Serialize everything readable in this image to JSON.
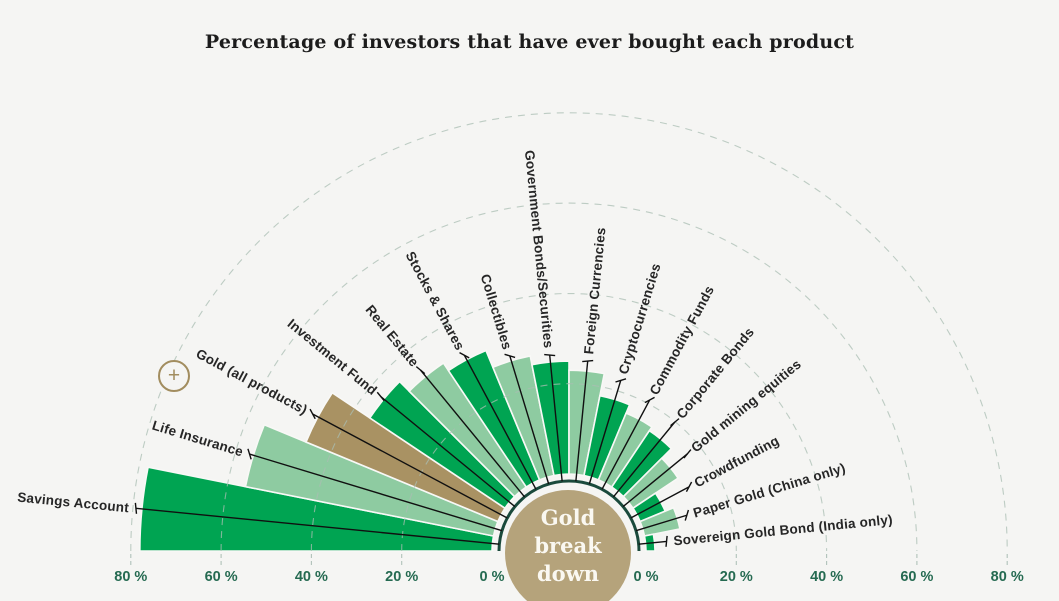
{
  "title": "Percentage of investors that have ever bought each product",
  "controls": {
    "expand_label": "+"
  },
  "center": {
    "label_lines": [
      "Gold",
      "break",
      "down"
    ]
  },
  "chart_data": {
    "type": "radial_bar",
    "title": "Percentage of investors that have ever bought each product",
    "unit": "%",
    "axis_range": [
      0,
      80
    ],
    "axis_ticks": [
      0,
      20,
      40,
      60,
      80
    ],
    "axis_tick_suffix": " %",
    "grid": true,
    "legend": "none",
    "center_label": "Gold break down",
    "colors": {
      "dark_green": "#00a452",
      "light_green": "#8ecba1",
      "gold": "#a99263",
      "center_circle": "#b5a37b",
      "ring": "#1a4a3c",
      "grid_line": "#a9bdb3",
      "axis_text": "#256a51",
      "label_text": "#262626",
      "leader_line": "#101010",
      "background": "#f5f5f3",
      "plus_icon": "#a28d5f"
    },
    "bars": [
      {
        "label": "Savings Account",
        "value": 78,
        "color": "dark_green"
      },
      {
        "label": "Life Insurance",
        "value": 56,
        "color": "light_green"
      },
      {
        "label": "Gold (all products)",
        "value": 46,
        "color": "gold"
      },
      {
        "label": "Investment Fund",
        "value": 36,
        "color": "dark_green"
      },
      {
        "label": "Real Estate",
        "value": 33,
        "color": "light_green"
      },
      {
        "label": "Stocks & Shares",
        "value": 31,
        "color": "dark_green"
      },
      {
        "label": "Collectibles",
        "value": 27,
        "color": "light_green"
      },
      {
        "label": "Government Bonds/Securities",
        "value": 25,
        "color": "dark_green"
      },
      {
        "label": "Foreign Currencies",
        "value": 23,
        "color": "light_green"
      },
      {
        "label": "Cryptocurrencies",
        "value": 18,
        "color": "dark_green"
      },
      {
        "label": "Commodity Funds",
        "value": 16,
        "color": "light_green"
      },
      {
        "label": "Corporate Bonds",
        "value": 15,
        "color": "dark_green"
      },
      {
        "label": "Gold mining equities",
        "value": 12,
        "color": "light_green"
      },
      {
        "label": "Crowdfunding",
        "value": 6,
        "color": "dark_green"
      },
      {
        "label": "Paper Gold (China only)",
        "value": 8,
        "color": "light_green"
      },
      {
        "label": "Sovereign Gold Bond (India only)",
        "value": 2,
        "color": "dark_green"
      }
    ]
  }
}
